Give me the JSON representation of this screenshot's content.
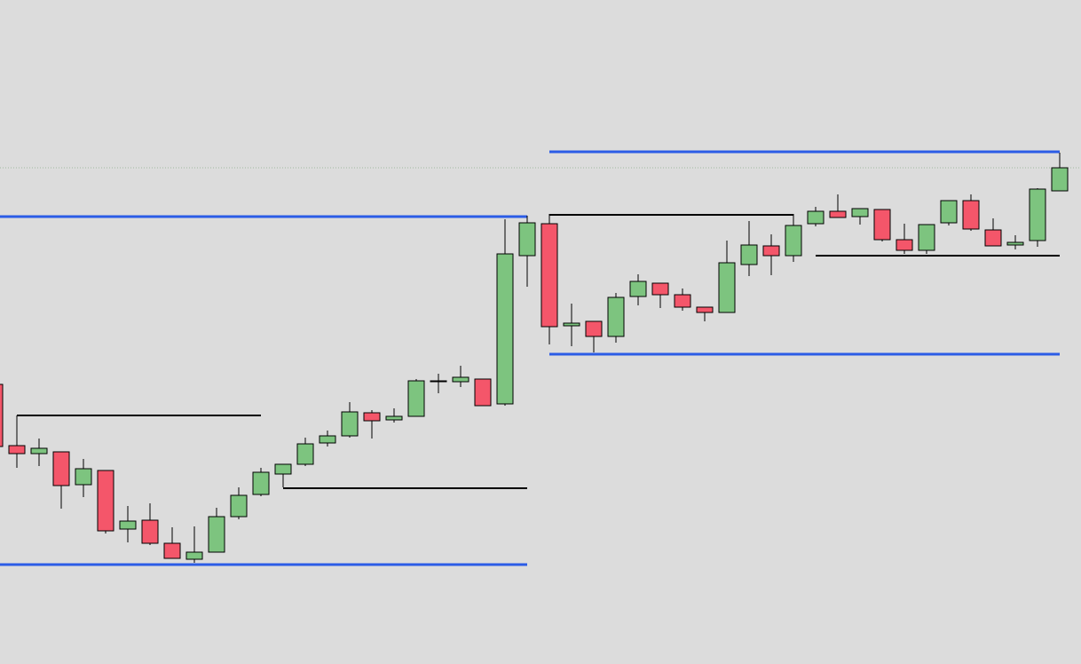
{
  "chart_data": {
    "type": "candlestick",
    "ylim": [
      0,
      748
    ],
    "up_color": "#7dc47f",
    "down_color": "#f4566a",
    "open": [
      315,
      246,
      237,
      239,
      202,
      218,
      152,
      162,
      136,
      118,
      126,
      166,
      191,
      214,
      225,
      249,
      257,
      283,
      275,
      279,
      318,
      318,
      321,
      293,
      460,
      496,
      381,
      386,
      369,
      414,
      429,
      416,
      402,
      396,
      450,
      471,
      460,
      496,
      510,
      504,
      512,
      478,
      466,
      497,
      522,
      489,
      472,
      477,
      533
    ],
    "high": [
      315,
      280,
      254,
      239,
      231,
      218,
      178,
      181,
      154,
      155,
      176,
      199,
      221,
      225,
      255,
      263,
      295,
      286,
      288,
      321,
      327,
      336,
      321,
      501,
      505,
      507,
      406,
      386,
      418,
      439,
      429,
      423,
      402,
      477,
      499,
      484,
      507,
      515,
      529,
      513,
      512,
      496,
      495,
      522,
      529,
      502,
      483,
      536,
      576
    ],
    "low": [
      245,
      221,
      223,
      175,
      188,
      147,
      137,
      134,
      119,
      114,
      126,
      163,
      189,
      199,
      223,
      245,
      255,
      254,
      272,
      279,
      305,
      312,
      291,
      291,
      425,
      360,
      358,
      351,
      362,
      404,
      401,
      398,
      386,
      396,
      437,
      438,
      453,
      493,
      503,
      495,
      476,
      462,
      462,
      494,
      488,
      471,
      467,
      470,
      533
    ],
    "close": [
      245,
      237,
      243,
      201,
      220,
      150,
      161,
      136,
      119,
      126,
      166,
      190,
      216,
      225,
      248,
      257,
      284,
      274,
      279,
      319,
      319,
      323,
      291,
      462,
      497,
      380,
      384,
      369,
      413,
      431,
      416,
      402,
      396,
      452,
      472,
      460,
      494,
      510,
      503,
      513,
      478,
      466,
      495,
      522,
      490,
      471,
      475,
      535,
      559
    ],
    "levels": [
      {
        "value": 504,
        "from": 0,
        "to": 24,
        "color": "#2b5ce6"
      },
      {
        "value": 112,
        "from": 0,
        "to": 24,
        "color": "#2b5ce6"
      },
      {
        "value": 577,
        "from": 25,
        "to": 48,
        "color": "#2b5ce6"
      },
      {
        "value": 349,
        "from": 25,
        "to": 48,
        "color": "#2b5ce6"
      },
      {
        "value": 280,
        "from": 1,
        "to": 12,
        "color": "#000000"
      },
      {
        "value": 198,
        "from": 13,
        "to": 24,
        "color": "#000000"
      },
      {
        "value": 506,
        "from": 25,
        "to": 36,
        "color": "#000000"
      },
      {
        "value": 460,
        "from": 37,
        "to": 48,
        "color": "#000000"
      }
    ],
    "current_price": 559
  }
}
